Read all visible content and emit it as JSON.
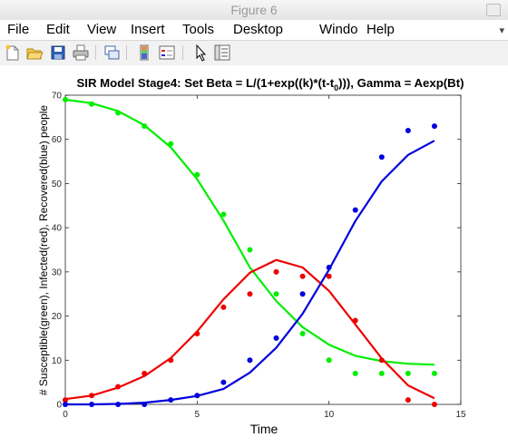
{
  "window": {
    "title": "Figure 6"
  },
  "menu": {
    "file": "File",
    "edit": "Edit",
    "view": "View",
    "insert": "Insert",
    "tools": "Tools",
    "desktop": "Desktop",
    "window": "Windo",
    "help": "Help"
  },
  "toolbar": {
    "icons": [
      "new-figure-icon",
      "open-file-icon",
      "save-icon",
      "print-icon",
      "link-icon",
      "colorbar-icon",
      "legend-icon",
      "pointer-icon",
      "property-inspector-icon"
    ]
  },
  "colors": {
    "susceptible": "#00ee00",
    "infected": "#ee0000",
    "recovered": "#0000dd"
  },
  "chart_data": {
    "type": "line",
    "title_main": "SIR Model Stage4: Set Beta = L/(1+exp((k)*(t-t",
    "title_sub": "0",
    "title_end": "))), Gamma = Aexp(Bt)",
    "xlabel": "Time",
    "ylabel": "# Susceptible(green), Infected(red), Recovered(blue) people",
    "xlim": [
      0,
      15
    ],
    "ylim": [
      0,
      70
    ],
    "xticks": [
      "0",
      "5",
      "10",
      "15"
    ],
    "yticks": [
      "0",
      "10",
      "20",
      "30",
      "40",
      "50",
      "60",
      "70"
    ],
    "grid": false,
    "legend": "none",
    "series": [
      {
        "key": "susceptible",
        "x": [
          0,
          1,
          2,
          3,
          4,
          5,
          6,
          7,
          8,
          9,
          10,
          11,
          12,
          13,
          14
        ],
        "points": [
          69,
          68,
          66,
          63,
          59,
          52,
          43,
          35,
          25,
          16,
          10,
          7,
          7,
          7,
          7
        ],
        "curve": [
          69,
          68.2,
          66.4,
          63.2,
          58.2,
          51,
          41.6,
          31,
          23.4,
          17.5,
          13.5,
          11,
          9.8,
          9.2,
          9
        ]
      },
      {
        "key": "infected",
        "x": [
          0,
          1,
          2,
          3,
          4,
          5,
          6,
          7,
          8,
          9,
          10,
          11,
          12,
          13,
          14
        ],
        "points": [
          1,
          2,
          4,
          7,
          10,
          16,
          22,
          25,
          30,
          29,
          29,
          19,
          10,
          1,
          0
        ],
        "curve": [
          1.2,
          2,
          3.8,
          6.4,
          10.5,
          16.5,
          23.8,
          29.8,
          32.7,
          31,
          25.7,
          18.1,
          10.4,
          4.3,
          1.4
        ]
      },
      {
        "key": "recovered",
        "x": [
          0,
          1,
          2,
          3,
          4,
          5,
          6,
          7,
          8,
          9,
          10,
          11,
          12,
          13,
          14
        ],
        "points": [
          0,
          0,
          0,
          0,
          1,
          2,
          5,
          10,
          15,
          25,
          31,
          44,
          56,
          62,
          63
        ],
        "curve": [
          0,
          0,
          0.1,
          0.4,
          1,
          1.9,
          3.5,
          7.2,
          12.8,
          20.5,
          30.5,
          41.5,
          50.5,
          56.5,
          59.7
        ]
      }
    ]
  }
}
